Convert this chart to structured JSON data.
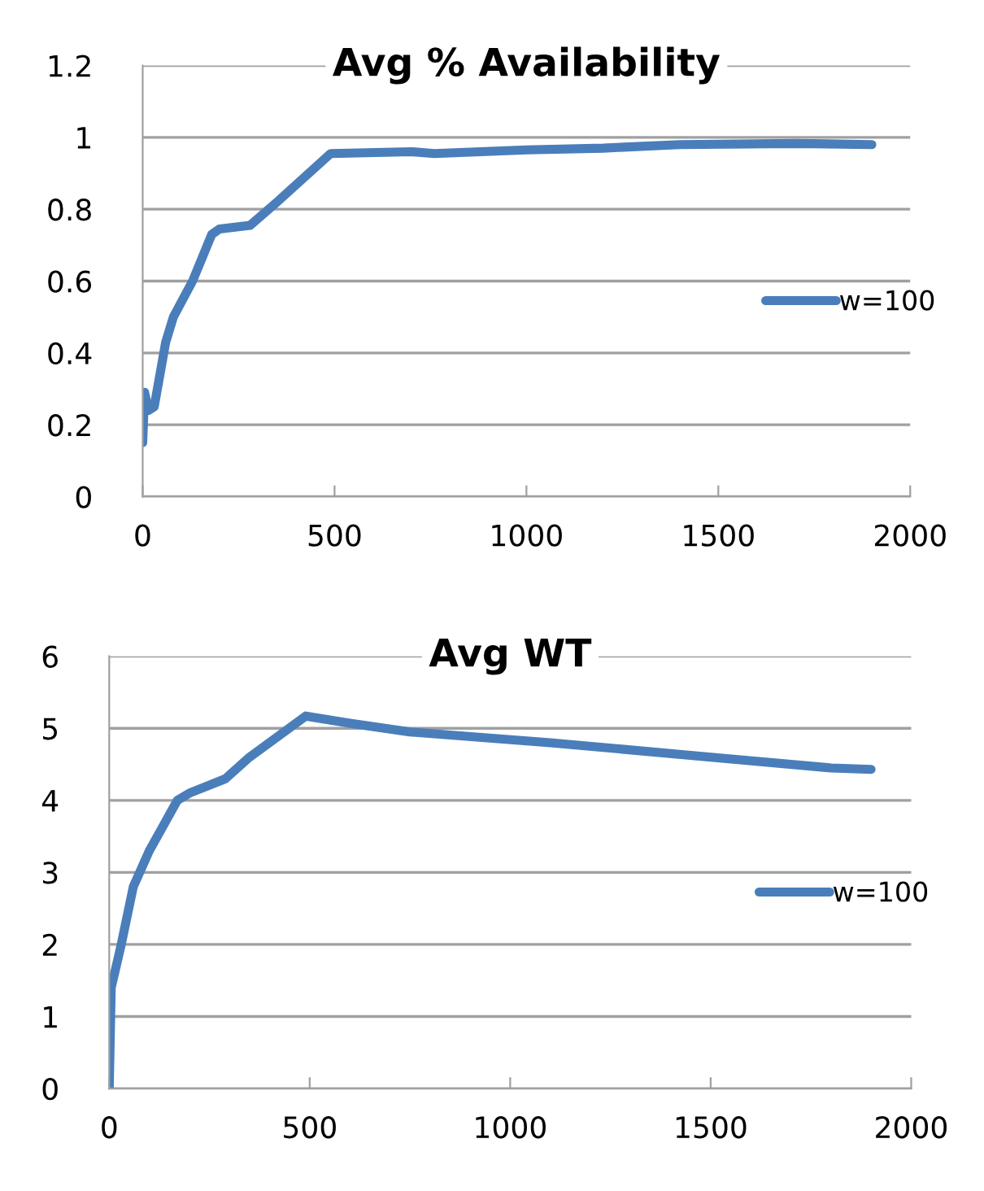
{
  "chart_data": [
    {
      "type": "line",
      "title": "Avg % Availability",
      "xlim": [
        0,
        2000
      ],
      "xticks": [
        0,
        500,
        1000,
        1500,
        2000
      ],
      "ylim": [
        0,
        1.2
      ],
      "yticks": [
        0,
        0.2,
        0.4,
        0.6,
        0.8,
        1,
        1.2
      ],
      "grid": "y",
      "legend": "right",
      "marker": "none",
      "line_style": "solid",
      "series": [
        {
          "name": "w=100",
          "color": "#4a7ebb",
          "x": [
            0,
            5,
            15,
            30,
            60,
            80,
            130,
            180,
            200,
            280,
            350,
            490,
            700,
            760,
            1000,
            1200,
            1400,
            1700,
            1900
          ],
          "values": [
            0.15,
            0.29,
            0.24,
            0.25,
            0.43,
            0.5,
            0.6,
            0.73,
            0.745,
            0.755,
            0.82,
            0.955,
            0.96,
            0.955,
            0.965,
            0.97,
            0.98,
            0.983,
            0.98
          ]
        }
      ]
    },
    {
      "type": "line",
      "title": "Avg WT",
      "xlim": [
        0,
        2000
      ],
      "xticks": [
        0,
        500,
        1000,
        1500,
        2000
      ],
      "ylim": [
        0,
        6
      ],
      "yticks": [
        0,
        1,
        2,
        3,
        4,
        5,
        6
      ],
      "grid": "y",
      "legend": "right",
      "marker": "none",
      "line_style": "solid",
      "series": [
        {
          "name": "w=100",
          "color": "#4a7ebb",
          "x": [
            0,
            5,
            30,
            60,
            100,
            170,
            200,
            290,
            350,
            490,
            600,
            750,
            1100,
            1500,
            1800,
            1900
          ],
          "values": [
            0,
            1.4,
            2.0,
            2.8,
            3.3,
            4.0,
            4.1,
            4.3,
            4.6,
            5.17,
            5.07,
            4.95,
            4.8,
            4.6,
            4.45,
            4.43
          ]
        }
      ]
    }
  ]
}
